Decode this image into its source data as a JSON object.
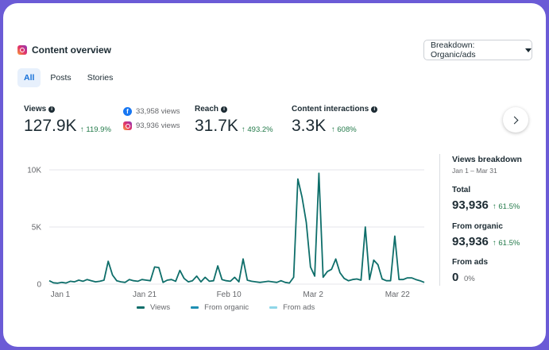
{
  "header": {
    "title": "Content overview",
    "dropdown_label": "Breakdown: Organic/ads"
  },
  "tabs": [
    {
      "label": "All",
      "active": true
    },
    {
      "label": "Posts",
      "active": false
    },
    {
      "label": "Stories",
      "active": false
    }
  ],
  "metrics": {
    "views": {
      "label": "Views",
      "value": "127.9K",
      "change": "↑ 119.9%"
    },
    "sources": [
      {
        "icon": "facebook-icon",
        "text": "33,958 views"
      },
      {
        "icon": "instagram-icon",
        "text": "93,936 views"
      }
    ],
    "reach": {
      "label": "Reach",
      "value": "31.7K",
      "change": "↑ 493.2%"
    },
    "interactions": {
      "label": "Content interactions",
      "value": "3.3K",
      "change": "↑ 608%"
    }
  },
  "breakdown": {
    "title": "Views breakdown",
    "range": "Jan 1 – Mar 31",
    "total": {
      "label": "Total",
      "value": "93,936",
      "change": "↑ 61.5%"
    },
    "organic": {
      "label": "From organic",
      "value": "93,936",
      "change": "↑ 61.5%"
    },
    "ads": {
      "label": "From ads",
      "value": "0",
      "change": "0%"
    }
  },
  "colors": {
    "views": "#0e6e6a",
    "organic": "#1e8fb3",
    "ads": "#8fd6e8",
    "positive": "#237a4a",
    "active_tab": "#1570d8"
  },
  "chart_data": {
    "type": "line",
    "y_ticks": [
      "10K",
      "5K",
      "0"
    ],
    "x_ticks": [
      "Jan 1",
      "Jan 21",
      "Feb 10",
      "Mar 2",
      "Mar 22"
    ],
    "ylim": [
      0,
      10000
    ],
    "x_domain": [
      "2025-01-01",
      "2025-03-31"
    ],
    "series": [
      {
        "name": "Views",
        "points": [
          [
            "2025-01-01",
            300
          ],
          [
            "2025-01-02",
            120
          ],
          [
            "2025-01-03",
            80
          ],
          [
            "2025-01-04",
            150
          ],
          [
            "2025-01-05",
            100
          ],
          [
            "2025-01-06",
            250
          ],
          [
            "2025-01-07",
            200
          ],
          [
            "2025-01-08",
            350
          ],
          [
            "2025-01-09",
            250
          ],
          [
            "2025-01-10",
            400
          ],
          [
            "2025-01-11",
            300
          ],
          [
            "2025-01-12",
            200
          ],
          [
            "2025-01-13",
            250
          ],
          [
            "2025-01-14",
            350
          ],
          [
            "2025-01-15",
            2000
          ],
          [
            "2025-01-16",
            800
          ],
          [
            "2025-01-17",
            300
          ],
          [
            "2025-01-18",
            200
          ],
          [
            "2025-01-19",
            150
          ],
          [
            "2025-01-20",
            400
          ],
          [
            "2025-01-21",
            300
          ],
          [
            "2025-01-22",
            250
          ],
          [
            "2025-01-23",
            400
          ],
          [
            "2025-01-24",
            350
          ],
          [
            "2025-01-25",
            300
          ],
          [
            "2025-01-26",
            1500
          ],
          [
            "2025-01-27",
            1450
          ],
          [
            "2025-01-28",
            150
          ],
          [
            "2025-01-29",
            350
          ],
          [
            "2025-01-30",
            400
          ],
          [
            "2025-01-31",
            250
          ],
          [
            "2025-02-01",
            1200
          ],
          [
            "2025-02-02",
            500
          ],
          [
            "2025-02-03",
            200
          ],
          [
            "2025-02-04",
            300
          ],
          [
            "2025-02-05",
            700
          ],
          [
            "2025-02-06",
            200
          ],
          [
            "2025-02-07",
            600
          ],
          [
            "2025-02-08",
            250
          ],
          [
            "2025-02-09",
            300
          ],
          [
            "2025-02-10",
            1600
          ],
          [
            "2025-02-11",
            400
          ],
          [
            "2025-02-12",
            300
          ],
          [
            "2025-02-13",
            250
          ],
          [
            "2025-02-14",
            600
          ],
          [
            "2025-02-15",
            200
          ],
          [
            "2025-02-16",
            2200
          ],
          [
            "2025-02-17",
            350
          ],
          [
            "2025-02-18",
            250
          ],
          [
            "2025-02-19",
            200
          ],
          [
            "2025-02-20",
            150
          ],
          [
            "2025-02-21",
            200
          ],
          [
            "2025-02-22",
            250
          ],
          [
            "2025-02-23",
            200
          ],
          [
            "2025-02-24",
            150
          ],
          [
            "2025-02-25",
            300
          ],
          [
            "2025-02-26",
            150
          ],
          [
            "2025-02-27",
            100
          ],
          [
            "2025-02-28",
            600
          ],
          [
            "2025-03-01",
            9200
          ],
          [
            "2025-03-02",
            7600
          ],
          [
            "2025-03-03",
            5400
          ],
          [
            "2025-03-04",
            1500
          ],
          [
            "2025-03-05",
            700
          ],
          [
            "2025-03-06",
            9700
          ],
          [
            "2025-03-07",
            600
          ],
          [
            "2025-03-08",
            1100
          ],
          [
            "2025-03-09",
            1300
          ],
          [
            "2025-03-10",
            2200
          ],
          [
            "2025-03-11",
            1000
          ],
          [
            "2025-03-12",
            500
          ],
          [
            "2025-03-13",
            300
          ],
          [
            "2025-03-14",
            400
          ],
          [
            "2025-03-15",
            450
          ],
          [
            "2025-03-16",
            350
          ],
          [
            "2025-03-17",
            5000
          ],
          [
            "2025-03-18",
            400
          ],
          [
            "2025-03-19",
            2100
          ],
          [
            "2025-03-20",
            1700
          ],
          [
            "2025-03-21",
            450
          ],
          [
            "2025-03-22",
            300
          ],
          [
            "2025-03-23",
            300
          ],
          [
            "2025-03-24",
            4200
          ],
          [
            "2025-03-25",
            400
          ],
          [
            "2025-03-26",
            400
          ],
          [
            "2025-03-27",
            550
          ],
          [
            "2025-03-28",
            550
          ],
          [
            "2025-03-29",
            400
          ],
          [
            "2025-03-30",
            300
          ],
          [
            "2025-03-31",
            150
          ]
        ]
      },
      {
        "name": "From organic"
      },
      {
        "name": "From ads"
      }
    ],
    "grid": true,
    "legend_position": "bottom"
  }
}
